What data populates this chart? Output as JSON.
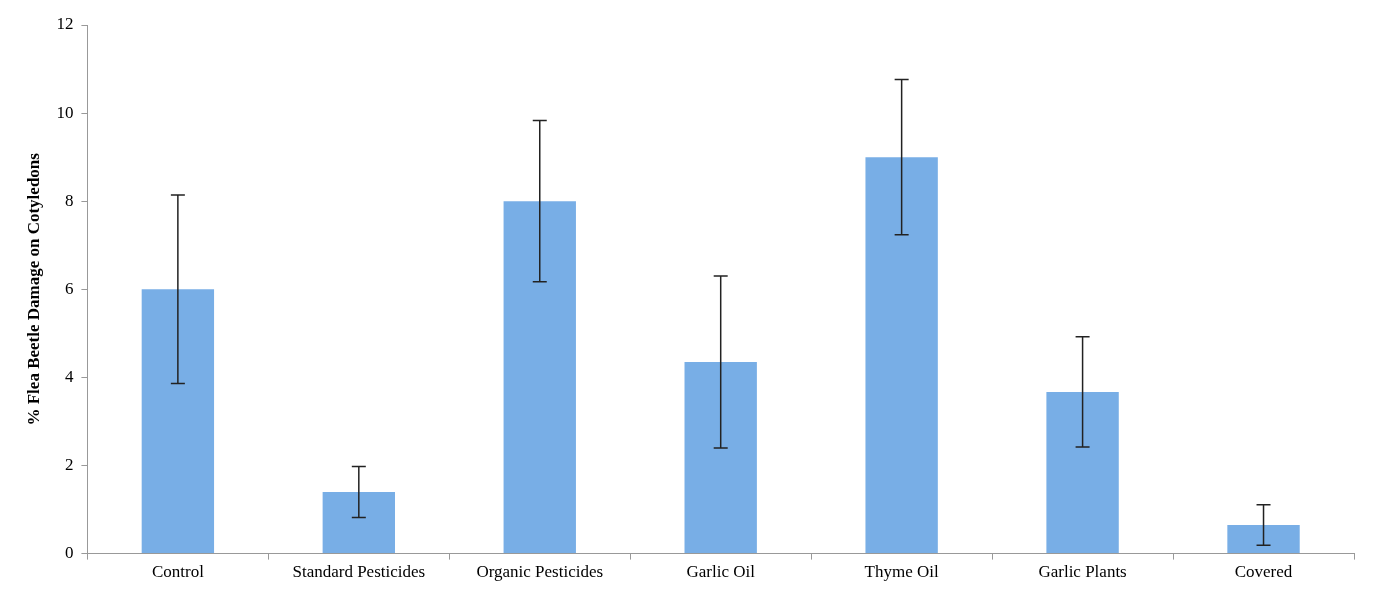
{
  "chart_data": {
    "type": "bar",
    "ylabel": "% Flea Beetle Damage on Cotyledons",
    "categories": [
      "Control",
      "Standard Pesticides",
      "Organic Pesticides",
      "Garlic Oil",
      "Thyme Oil",
      "Garlic Plants",
      "Covered"
    ],
    "values": [
      6.0,
      1.4,
      8.0,
      4.35,
      9.0,
      3.67,
      0.65
    ],
    "errors": [
      2.14,
      0.58,
      1.83,
      1.95,
      1.76,
      1.25,
      0.46
    ],
    "color": "#78aee6",
    "ylim": [
      0,
      12
    ],
    "yticks": [
      0,
      2,
      4,
      6,
      8,
      10,
      12
    ],
    "grid": false,
    "legend": false
  }
}
